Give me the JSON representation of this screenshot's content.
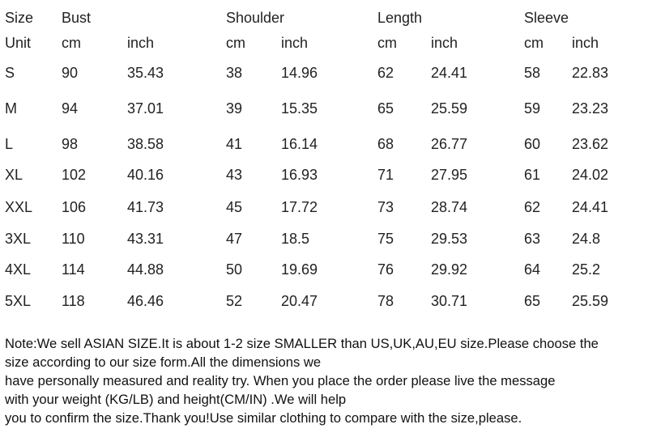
{
  "table": {
    "header": [
      "Size",
      "Bust",
      "Shoulder",
      "Length",
      "Sleeve"
    ],
    "units": [
      "Unit",
      "cm",
      "inch",
      "cm",
      "inch",
      "cm",
      "inch",
      "cm",
      "inch"
    ],
    "rows": [
      [
        "S",
        "90",
        "35.43",
        "38",
        "14.96",
        "62",
        "24.41",
        "58",
        "22.83"
      ],
      [
        "M",
        "94",
        "37.01",
        "39",
        "15.35",
        "65",
        "25.59",
        "59",
        "23.23"
      ],
      [
        "L",
        "98",
        "38.58",
        "41",
        "16.14",
        "68",
        "26.77",
        "60",
        "23.62"
      ],
      [
        "XL",
        "102",
        "40.16",
        "43",
        "16.93",
        "71",
        "27.95",
        "61",
        "24.02"
      ],
      [
        "XXL",
        "106",
        "41.73",
        "45",
        "17.72",
        "73",
        "28.74",
        "62",
        "24.41"
      ],
      [
        "3XL",
        "110",
        "43.31",
        "47",
        "18.5",
        "75",
        "29.53",
        "63",
        "24.8"
      ],
      [
        "4XL",
        "114",
        "44.88",
        "50",
        "19.69",
        "76",
        "29.92",
        "64",
        "25.2"
      ],
      [
        "5XL",
        "118",
        "46.46",
        "52",
        "20.47",
        "78",
        "30.71",
        "65",
        "25.59"
      ]
    ]
  },
  "note": [
    "Note:We sell ASIAN SIZE.It is about 1-2 size SMALLER than US,UK,AU,EU size.Please choose the",
    "size according to our size form.All the dimensions we",
    "have personally measured and reality try. When you place the order please live the message",
    "with your weight (KG/LB) and height(CM/IN) .We will help",
    "you to confirm the size.Thank you!Use similar clothing to compare with the size,please."
  ]
}
